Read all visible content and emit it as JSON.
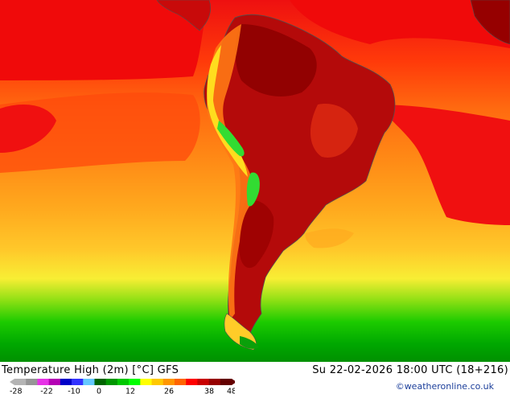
{
  "map": {
    "title": "Temperature High (2m) [°C] GFS",
    "datetime": "Su 22-02-2026 18:00 UTC (18+216)",
    "credit": "©weatheronline.co.uk",
    "colorbar": {
      "tick_labels": [
        "-28",
        "-22",
        "-10",
        "0",
        "12",
        "26",
        "38",
        "48"
      ],
      "colors": [
        "#b4b4b4",
        "#969696",
        "#e632e6",
        "#b400b4",
        "#0000c8",
        "#3232ff",
        "#64c8ff",
        "#006400",
        "#009600",
        "#00c800",
        "#00ff00",
        "#ffff00",
        "#ffc800",
        "#ff9600",
        "#ff6400",
        "#ff0000",
        "#c80000",
        "#960000",
        "#640000"
      ]
    },
    "palette": {
      "ocean_far_north": "#f00a0a",
      "ocean_warm": "#ff5a0a",
      "ocean_mid": "#ff8a14",
      "ocean_cool": "#ffb020",
      "ocean_cooler": "#ffd23c",
      "ocean_yellow": "#f5f032",
      "ocean_green_light": "#32d200",
      "ocean_green": "#00b400",
      "ocean_green_dark": "#008c00",
      "land_hot": "#b40a0a",
      "land_very_hot": "#8c0000",
      "land_border": "#505050",
      "andes_green": "#32dc32",
      "andes_yellow": "#ffe600"
    }
  }
}
